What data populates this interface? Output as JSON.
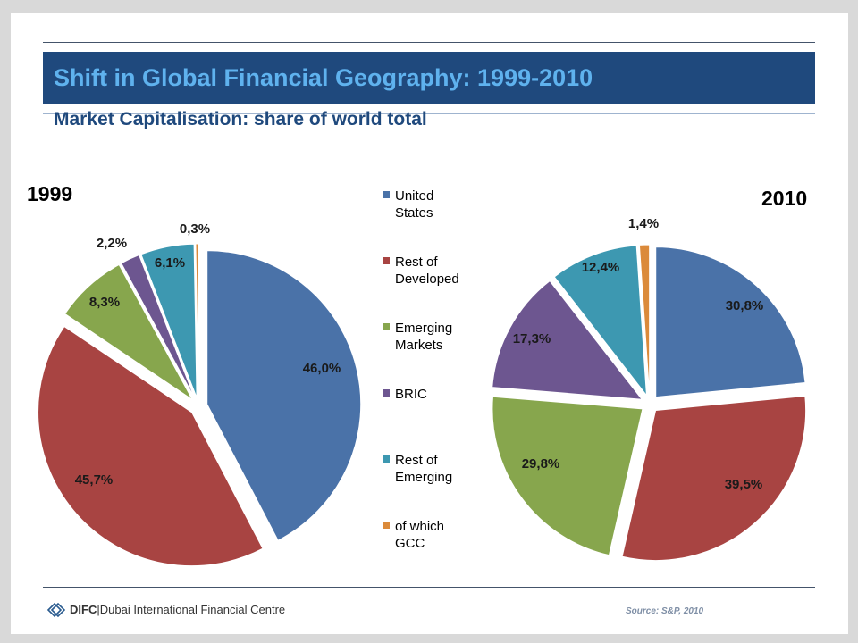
{
  "title": "Shift in Global Financial Geography: 1999-2010",
  "subtitle": "Market Capitalisation: share of world total",
  "chart_data": [
    {
      "type": "pie",
      "title": "1999",
      "categories": [
        "United States",
        "Rest of Developed",
        "Emerging Markets",
        "BRIC",
        "Rest of Emerging",
        "of which GCC"
      ],
      "values": [
        46.0,
        45.7,
        8.3,
        2.2,
        6.1,
        0.3
      ],
      "labels": [
        "46,0%",
        "45,7%",
        "8,3%",
        "2,2%",
        "6,1%",
        "0,3%"
      ],
      "colors": [
        "#4a72a8",
        "#a84442",
        "#87a64d",
        "#6d5690",
        "#3d98b1",
        "#db8a3a"
      ]
    },
    {
      "type": "pie",
      "title": "2010",
      "categories": [
        "United States",
        "Rest of Developed",
        "Emerging Markets",
        "BRIC",
        "Rest of Emerging",
        "of which GCC"
      ],
      "values": [
        30.8,
        39.5,
        29.8,
        17.3,
        12.4,
        1.4
      ],
      "labels": [
        "30,8%",
        "39,5%",
        "29,8%",
        "17,3%",
        "12,4%",
        "1,4%"
      ],
      "colors": [
        "#4a72a8",
        "#a84442",
        "#87a64d",
        "#6d5690",
        "#3d98b1",
        "#db8a3a"
      ]
    }
  ],
  "legend": [
    {
      "line1": "United",
      "line2": "States",
      "color": "#4a72a8"
    },
    {
      "line1": "Rest of",
      "line2": "Developed",
      "color": "#a84442"
    },
    {
      "line1": "Emerging",
      "line2": "Markets",
      "color": "#87a64d"
    },
    {
      "line1": "BRIC",
      "line2": "",
      "color": "#6d5690"
    },
    {
      "line1": "Rest of",
      "line2": "Emerging",
      "color": "#3d98b1"
    },
    {
      "line1": "of which",
      "line2": "GCC",
      "color": "#db8a3a"
    }
  ],
  "footer": {
    "brand_short": "DIFC",
    "brand_long": "Dubai International Financial Centre",
    "source": "Source: S&P, 2010"
  }
}
